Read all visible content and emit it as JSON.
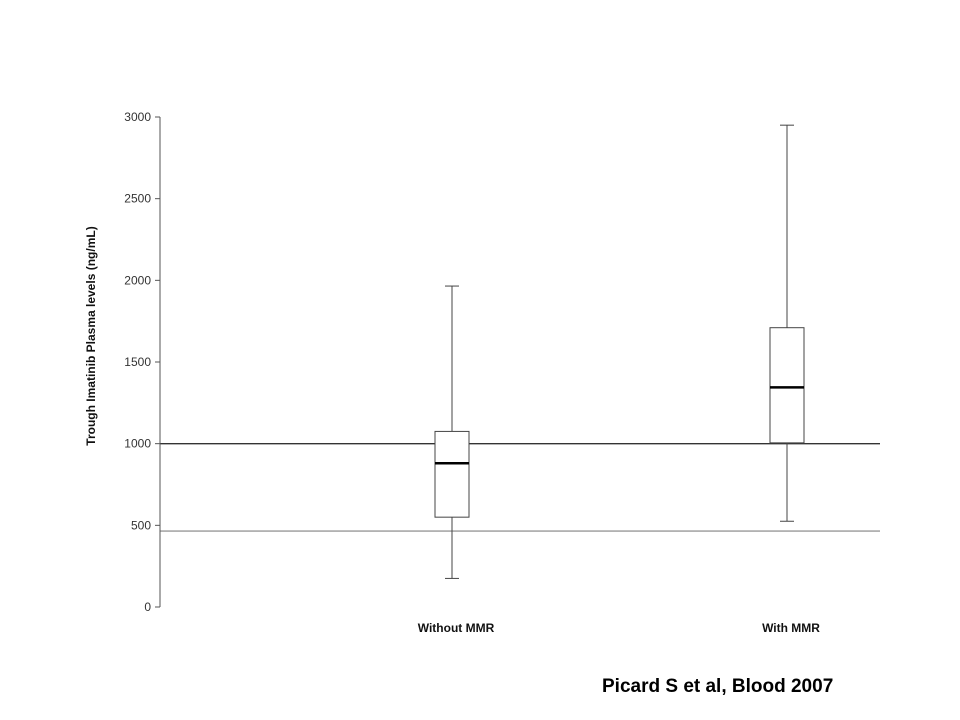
{
  "chart_data": {
    "type": "box",
    "ylabel": "Trough Imatinib Plasma  levels (ng/mL)",
    "xlabel": "",
    "ylim": [
      0,
      3000
    ],
    "yticks": [
      0,
      500,
      1000,
      1500,
      2000,
      2500,
      3000
    ],
    "categories": [
      "Without MMR",
      "With MMR"
    ],
    "boxes": [
      {
        "category": "Without MMR",
        "min": 175,
        "q1": 550,
        "median": 880,
        "q3": 1075,
        "max": 1965
      },
      {
        "category": "With MMR",
        "min": 525,
        "q1": 1005,
        "median": 1345,
        "q3": 1710,
        "max": 2950
      }
    ],
    "reference_lines": [
      {
        "value": 1000,
        "color": "#333333"
      },
      {
        "value": 465,
        "color": "#999999"
      }
    ],
    "grid": false
  },
  "citation": "Picard S et al, Blood 2007"
}
